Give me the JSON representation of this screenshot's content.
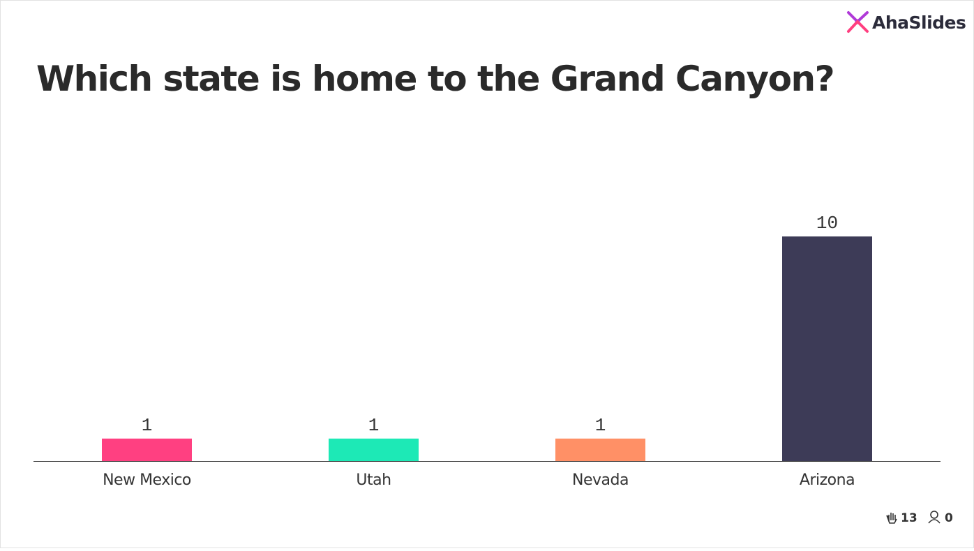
{
  "logo": "AhaSlides",
  "stats": {
    "reactions": 13,
    "participants": 0
  },
  "chart_data": {
    "type": "bar",
    "title": "Which state is home to the Grand Canyon?",
    "categories": [
      "New Mexico",
      "Utah",
      "Nevada",
      "Arizona"
    ],
    "values": [
      1,
      1,
      1,
      10
    ],
    "colors": [
      "#ff4081",
      "#1de9b6",
      "#ff9066",
      "#3d3b57"
    ]
  }
}
